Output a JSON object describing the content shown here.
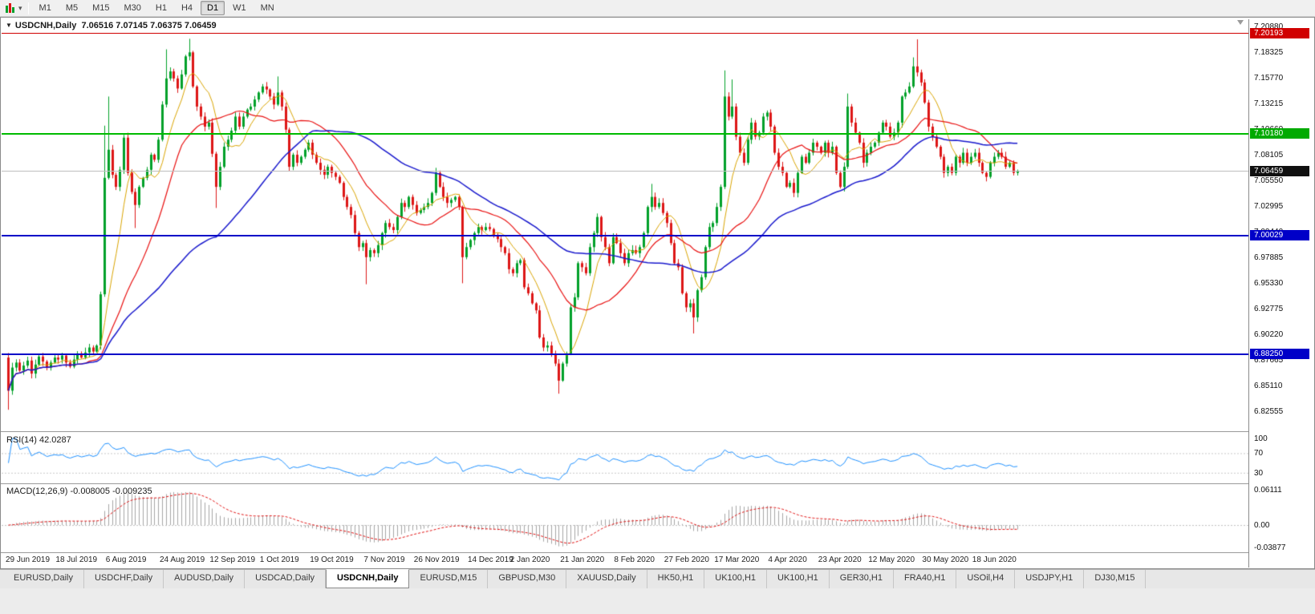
{
  "toolbar": {
    "timeframes": [
      {
        "label": "M1",
        "active": false
      },
      {
        "label": "M5",
        "active": false
      },
      {
        "label": "M15",
        "active": false
      },
      {
        "label": "M30",
        "active": false
      },
      {
        "label": "H1",
        "active": false
      },
      {
        "label": "H4",
        "active": false
      },
      {
        "label": "D1",
        "active": true
      },
      {
        "label": "W1",
        "active": false
      },
      {
        "label": "MN",
        "active": false
      }
    ]
  },
  "chart": {
    "symbol_period": "USDCNH,Daily",
    "ohlc": "7.06516 7.07145 7.06375 7.06459"
  },
  "tabs": {
    "items": [
      {
        "label": "EURUSD,Daily",
        "active": false
      },
      {
        "label": "USDCHF,Daily",
        "active": false
      },
      {
        "label": "AUDUSD,Daily",
        "active": false
      },
      {
        "label": "USDCAD,Daily",
        "active": false
      },
      {
        "label": "USDCNH,Daily",
        "active": true
      },
      {
        "label": "EURUSD,M15",
        "active": false
      },
      {
        "label": "GBPUSD,M30",
        "active": false
      },
      {
        "label": "XAUUSD,Daily",
        "active": false
      },
      {
        "label": "HK50,H1",
        "active": false
      },
      {
        "label": "UK100,H1",
        "active": false
      },
      {
        "label": "UK100,H1",
        "active": false
      },
      {
        "label": "GER30,H1",
        "active": false
      },
      {
        "label": "FRA40,H1",
        "active": false
      },
      {
        "label": "USOil,H4",
        "active": false
      },
      {
        "label": "USDJPY,H1",
        "active": false
      },
      {
        "label": "DJ30,M15",
        "active": false
      }
    ]
  },
  "chart_data": {
    "type": "candlestick",
    "symbol": "USDCNH",
    "timeframe": "Daily",
    "colors": {
      "up": "#00A029",
      "down": "#DD1616",
      "background": "#FFFFFF"
    },
    "price_axis": {
      "top": 7.2088,
      "step": 0.02555,
      "count": 16,
      "labels": [
        "7.20880",
        "7.18325",
        "7.15770",
        "7.13215",
        "7.10660",
        "7.08105",
        "7.05550",
        "7.02995",
        "7.00440",
        "6.97885",
        "6.95330",
        "6.92775",
        "6.90220",
        "6.87665",
        "6.85110",
        "6.82555"
      ]
    },
    "hlines": [
      {
        "price": 7.20193,
        "color": "#D00000",
        "width": 1
      },
      {
        "price": 7.1018,
        "color": "#00BB00",
        "width": 2
      },
      {
        "price": 7.06459,
        "color": "#BEBEBE",
        "width": 1
      },
      {
        "price": 7.00029,
        "color": "#0000C8",
        "width": 2
      },
      {
        "price": 6.8825,
        "color": "#0000C8",
        "width": 2
      }
    ],
    "badges": [
      {
        "price": 7.20193,
        "text": "7.20193",
        "color": "#D00000"
      },
      {
        "price": 7.1018,
        "text": "7.10180",
        "color": "#00AA00"
      },
      {
        "price": 7.06459,
        "text": "7.06459",
        "color": "#101010"
      },
      {
        "price": 7.00029,
        "text": "7.00029",
        "color": "#0000C8"
      },
      {
        "price": 6.8825,
        "text": "6.88250",
        "color": "#0000C8"
      }
    ],
    "ma": [
      {
        "period": 8,
        "color": "#D9A400",
        "width": 1
      },
      {
        "period": 21,
        "color": "#E81010",
        "width": 1.2
      },
      {
        "period": 55,
        "color": "#1818CC",
        "width": 1.5
      }
    ],
    "rsi": {
      "label": "RSI(14)",
      "value": "42.0287",
      "line_color": "#1E90FF",
      "scale_labels": [
        {
          "v": 100,
          "text": "100"
        },
        {
          "v": 70,
          "text": "70"
        },
        {
          "v": 30,
          "text": "30"
        }
      ],
      "level_lines": [
        70,
        30
      ]
    },
    "macd": {
      "label": "MACD(12,26,9)",
      "values": "-0.008005 -0.009235",
      "hist_color": "#A6A6A6",
      "signal_color": "#E01010",
      "scale_max": 0.06111,
      "scale_min": -0.03877,
      "scale_labels": [
        {
          "v": 0.06111,
          "text": "0.06111"
        },
        {
          "v": 0,
          "text": "0.00"
        },
        {
          "v": -0.03877,
          "text": "-0.03877"
        }
      ]
    },
    "date_labels": [
      {
        "text": "29 Jun 2019",
        "i": 0
      },
      {
        "text": "18 Jul 2019",
        "i": 13
      },
      {
        "text": "6 Aug 2019",
        "i": 26
      },
      {
        "text": "24 Aug 2019",
        "i": 40
      },
      {
        "text": "12 Sep 2019",
        "i": 53
      },
      {
        "text": "1 Oct 2019",
        "i": 66
      },
      {
        "text": "19 Oct 2019",
        "i": 79
      },
      {
        "text": "7 Nov 2019",
        "i": 93
      },
      {
        "text": "26 Nov 2019",
        "i": 106
      },
      {
        "text": "14 Dec 2019",
        "i": 120
      },
      {
        "text": "2 Jan 2020",
        "i": 131
      },
      {
        "text": "21 Jan 2020",
        "i": 144
      },
      {
        "text": "8 Feb 2020",
        "i": 158
      },
      {
        "text": "27 Feb 2020",
        "i": 171
      },
      {
        "text": "17 Mar 2020",
        "i": 184
      },
      {
        "text": "4 Apr 2020",
        "i": 198
      },
      {
        "text": "23 Apr 2020",
        "i": 211
      },
      {
        "text": "12 May 2020",
        "i": 224
      },
      {
        "text": "30 May 2020",
        "i": 238
      },
      {
        "text": "18 Jun 2020",
        "i": 251
      }
    ],
    "first_open": 6.879,
    "closes": [
      6.846,
      6.869,
      6.874,
      6.866,
      6.871,
      6.876,
      6.863,
      6.872,
      6.88,
      6.875,
      6.869,
      6.874,
      6.879,
      6.877,
      6.881,
      6.874,
      6.87,
      6.877,
      6.883,
      6.879,
      6.884,
      6.889,
      6.885,
      6.891,
      6.942,
      7.058,
      7.086,
      7.061,
      7.049,
      7.066,
      7.098,
      7.063,
      7.044,
      7.031,
      7.049,
      7.058,
      7.066,
      7.081,
      7.076,
      7.096,
      7.131,
      7.157,
      7.164,
      7.157,
      7.147,
      7.161,
      7.179,
      7.183,
      7.149,
      7.129,
      7.119,
      7.109,
      7.113,
      7.082,
      7.049,
      7.069,
      7.089,
      7.096,
      7.105,
      7.119,
      7.109,
      7.119,
      7.126,
      7.129,
      7.136,
      7.143,
      7.149,
      7.146,
      7.139,
      7.131,
      7.143,
      7.129,
      7.106,
      7.069,
      7.081,
      7.073,
      7.079,
      7.086,
      7.093,
      7.081,
      7.073,
      7.066,
      7.061,
      7.069,
      7.063,
      7.059,
      7.053,
      7.039,
      7.029,
      7.021,
      7.003,
      6.989,
      6.993,
      6.979,
      6.986,
      6.983,
      6.991,
      7.003,
      7.013,
      7.009,
      7.006,
      7.019,
      7.033,
      7.029,
      7.039,
      7.031,
      7.023,
      7.026,
      7.029,
      7.033,
      7.043,
      7.063,
      7.049,
      7.039,
      7.033,
      7.036,
      7.039,
      7.029,
      6.979,
      6.989,
      6.996,
      7.003,
      7.009,
      7.006,
      7.009,
      7.007,
      7.001,
      6.997,
      6.989,
      6.983,
      6.967,
      6.963,
      6.973,
      6.976,
      6.949,
      6.943,
      6.933,
      6.926,
      6.899,
      6.889,
      6.891,
      6.883,
      6.873,
      6.856,
      6.873,
      6.883,
      6.929,
      6.939,
      6.973,
      6.969,
      6.963,
      6.989,
      7.003,
      7.019,
      6.999,
      6.989,
      6.973,
      6.999,
      6.993,
      6.983,
      6.973,
      6.983,
      6.986,
      6.983,
      6.989,
      7.003,
      7.029,
      7.039,
      7.029,
      7.033,
      7.023,
      7.013,
      6.993,
      6.973,
      6.969,
      6.943,
      6.929,
      6.933,
      6.919,
      6.946,
      6.959,
      6.989,
      7.009,
      7.013,
      7.029,
      7.049,
      7.139,
      7.119,
      7.129,
      7.099,
      7.083,
      7.073,
      7.096,
      7.113,
      7.099,
      7.103,
      7.119,
      7.123,
      7.109,
      7.083,
      7.069,
      7.063,
      7.049,
      7.053,
      7.043,
      7.063,
      7.079,
      7.073,
      7.083,
      7.093,
      7.089,
      7.083,
      7.093,
      7.083,
      7.089,
      7.063,
      7.049,
      7.069,
      7.129,
      7.113,
      7.103,
      7.093,
      7.073,
      7.083,
      7.089,
      7.093,
      7.103,
      7.113,
      7.109,
      7.099,
      7.103,
      7.113,
      7.139,
      7.143,
      7.149,
      7.169,
      7.163,
      7.153,
      7.133,
      7.109,
      7.099,
      7.089,
      7.079,
      7.063,
      7.069,
      7.063,
      7.079,
      7.073,
      7.083,
      7.073,
      7.079,
      7.083,
      7.073,
      7.063,
      7.059,
      7.073,
      7.079,
      7.083,
      7.079,
      7.069,
      7.073,
      7.063,
      7.065
    ],
    "wick_overrides": {
      "0": {
        "l": 6.827
      },
      "25": {
        "h": 7.11
      },
      "26": {
        "h": 7.139
      },
      "33": {
        "l": 7.008
      },
      "41": {
        "h": 7.186
      },
      "47": {
        "h": 7.1965
      },
      "54": {
        "l": 7.028
      },
      "70": {
        "h": 7.159
      },
      "93": {
        "l": 6.952
      },
      "118": {
        "l": 6.953
      },
      "143": {
        "l": 6.843
      },
      "167": {
        "h": 7.052
      },
      "178": {
        "l": 6.903
      },
      "186": {
        "h": 7.165
      },
      "188": {
        "h": 7.156
      },
      "218": {
        "h": 7.142
      },
      "235": {
        "h": 7.178
      },
      "236": {
        "h": 7.196
      }
    }
  }
}
